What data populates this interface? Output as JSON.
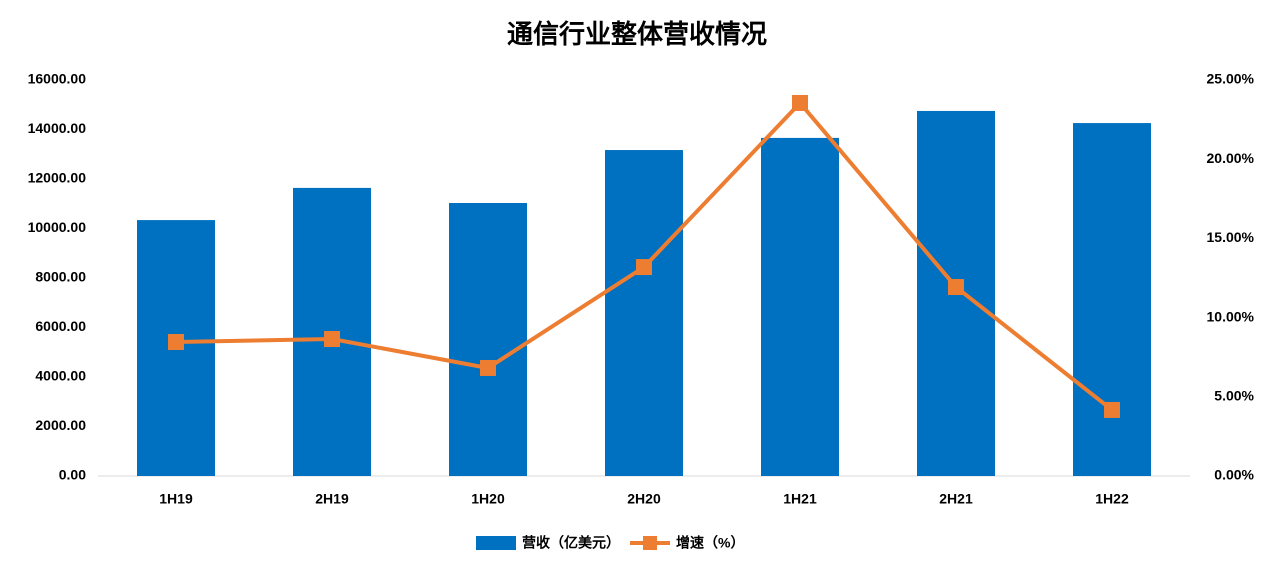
{
  "chart_data": {
    "type": "combo",
    "title": "通信行业整体营收情况",
    "categories": [
      "1H19",
      "2H19",
      "1H20",
      "2H20",
      "1H21",
      "2H21",
      "1H22"
    ],
    "series": [
      {
        "name": "营收（亿美元）",
        "type": "bar",
        "color": "#0070c0",
        "values": [
          10340,
          11640,
          11030,
          13170,
          13660,
          14750,
          14260
        ]
      },
      {
        "name": "增速（%）",
        "type": "line",
        "axis": "y2",
        "color": "#ed7d31",
        "values": [
          8.46,
          8.65,
          6.82,
          13.19,
          23.55,
          11.93,
          4.17
        ]
      }
    ],
    "ylim": [
      0,
      16000
    ],
    "yticks": [
      {
        "value": 0,
        "label": "0.00"
      },
      {
        "value": 2000,
        "label": "2000.00"
      },
      {
        "value": 4000,
        "label": "4000.00"
      },
      {
        "value": 6000,
        "label": "6000.00"
      },
      {
        "value": 8000,
        "label": "8000.00"
      },
      {
        "value": 10000,
        "label": "10000.00"
      },
      {
        "value": 12000,
        "label": "12000.00"
      },
      {
        "value": 14000,
        "label": "14000.00"
      },
      {
        "value": 16000,
        "label": "16000.00"
      }
    ],
    "y2lim": [
      0,
      25
    ],
    "y2ticks": [
      {
        "value": 0,
        "label": "0.00%"
      },
      {
        "value": 5,
        "label": "5.00%"
      },
      {
        "value": 10,
        "label": "10.00%"
      },
      {
        "value": 15,
        "label": "15.00%"
      },
      {
        "value": 20,
        "label": "20.00%"
      },
      {
        "value": 25,
        "label": "25.00%"
      }
    ],
    "grid": false,
    "legend": "bottom"
  }
}
